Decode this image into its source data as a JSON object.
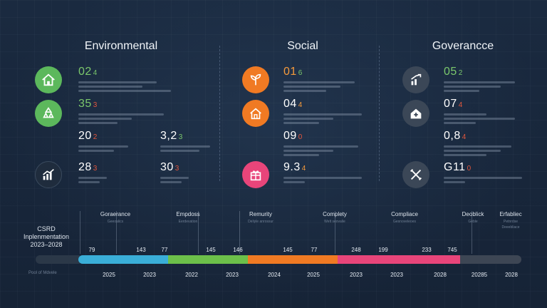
{
  "colors": {
    "background": "#172437",
    "green": "#5cb85c",
    "orange": "#f07a23",
    "pink": "#e8457a",
    "gray_icon": "#3b4757",
    "teal": "#3aaed8",
    "red_accent": "#e2563c"
  },
  "environmental": {
    "title": "Environmental",
    "icons": [
      "house-icon",
      "recycle-icon",
      "chart-up-icon"
    ],
    "metrics": [
      {
        "value": "02",
        "suffix": "4",
        "color": "#7bc86c"
      },
      {
        "value": "35",
        "suffix": "3",
        "color": "#7bc86c"
      },
      {
        "value": "20",
        "suffix": "2",
        "color": "#ffffff"
      },
      {
        "value": "3,2",
        "suffix": "3",
        "color": "#ffffff"
      },
      {
        "value": "28",
        "suffix": "3",
        "color": "#ffffff"
      },
      {
        "value": "30",
        "suffix": "3",
        "color": "#ffffff"
      }
    ]
  },
  "social": {
    "title": "Social",
    "icons": [
      "sprout-icon",
      "house-icon",
      "gift-icon"
    ],
    "metrics": [
      {
        "value": "01",
        "suffix": "6",
        "color": "#f59a3c"
      },
      {
        "value": "04",
        "suffix": "4",
        "color": "#ffffff"
      },
      {
        "value": "09",
        "suffix": "0",
        "color": "#ffffff"
      },
      {
        "value": "9.3",
        "suffix": "4",
        "color": "#ffffff"
      }
    ]
  },
  "governance": {
    "title": "Goverancce",
    "icons": [
      "chart-up-icon",
      "house-plus-icon",
      "tools-icon"
    ],
    "metrics": [
      {
        "value": "05",
        "suffix": "2",
        "color": "#7bc86c"
      },
      {
        "value": "07",
        "suffix": "4",
        "color": "#ffffff"
      },
      {
        "value": "0,8",
        "suffix": "4",
        "color": "#ffffff"
      },
      {
        "value": "G11",
        "suffix": "0",
        "color": "#ffffff"
      }
    ]
  },
  "timeline": {
    "title": "CSRD Inplenmentation 2023–2028",
    "footnote": "Pool of Mdvele",
    "phases": [
      {
        "name": "Goraerance",
        "sub": "Geeoalics",
        "sub2": ""
      },
      {
        "name": "Empdoss",
        "sub": "Eerdevation",
        "sub2": ""
      },
      {
        "name": "Remurity",
        "sub": "Deliyle anrossur",
        "sub2": ""
      },
      {
        "name": "Complety",
        "sub": "Welt seovalie",
        "sub2": ""
      },
      {
        "name": "Compliace",
        "sub": "Gesnoveleoes",
        "sub2": ""
      },
      {
        "name": "Deoblick",
        "sub": "Geble",
        "sub2": ""
      },
      {
        "name": "Erfabliec",
        "sub": "Petnrdse",
        "sub2": "Deeebliace"
      }
    ],
    "numbers": [
      "79",
      "143",
      "77",
      "145",
      "146",
      "145",
      "77",
      "248",
      "199",
      "233",
      "745"
    ],
    "years": [
      "2025",
      "2023",
      "2022",
      "2023",
      "2024",
      "2025",
      "2023",
      "2023",
      "2028",
      "20285",
      "2028"
    ],
    "segments": [
      {
        "color": "#3aaed8"
      },
      {
        "color": "#6cc04a"
      },
      {
        "color": "#f07a23"
      },
      {
        "color": "#e8457a"
      },
      {
        "color": "#3d4654"
      }
    ]
  }
}
